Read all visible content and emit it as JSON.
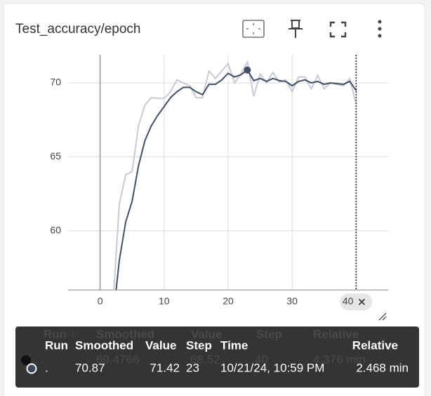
{
  "chart_data": {
    "type": "line",
    "title": "Test_accuracy/epoch",
    "x": [
      2,
      3,
      4,
      5,
      6,
      7,
      8,
      9,
      10,
      11,
      12,
      13,
      14,
      15,
      16,
      17,
      18,
      19,
      20,
      21,
      22,
      23,
      24,
      25,
      26,
      27,
      28,
      29,
      30,
      31,
      32,
      33,
      34,
      35,
      36,
      37,
      38,
      39,
      40
    ],
    "series": [
      {
        "color": "#c6cbd4",
        "values": [
          55.0,
          61.8,
          63.8,
          64.0,
          67.1,
          68.5,
          69.0,
          68.95,
          68.95,
          69.4,
          70.2,
          70.0,
          69.8,
          69.0,
          69.0,
          70.8,
          70.3,
          70.8,
          71.3,
          70.0,
          70.6,
          71.42,
          69.1,
          70.6,
          70.0,
          70.7,
          70.05,
          70.2,
          69.4,
          70.4,
          70.4,
          69.6,
          70.5,
          69.6,
          70.0,
          69.9,
          69.8,
          70.3,
          68.52
        ]
      },
      {
        "color": "#425066",
        "values": [
          54.0,
          58.0,
          60.6,
          62.0,
          64.4,
          66.1,
          67.1,
          67.8,
          68.4,
          69.0,
          69.4,
          69.7,
          69.7,
          69.4,
          69.2,
          69.9,
          69.9,
          70.2,
          70.65,
          70.4,
          70.55,
          70.87,
          70.15,
          70.3,
          70.1,
          70.3,
          70.15,
          70.1,
          69.8,
          70.1,
          70.2,
          70.0,
          70.1,
          69.9,
          70.0,
          69.95,
          69.9,
          70.1,
          69.4766
        ]
      }
    ],
    "xlim": [
      -5,
      45
    ],
    "xticks": [
      0,
      10,
      20,
      30,
      40
    ],
    "ylim": [
      56,
      71.9
    ],
    "yticks": [
      60,
      65,
      70
    ],
    "grid": true,
    "hover": {
      "x": 40
    }
  },
  "tooltip": {
    "columns": [
      "Run",
      "Smoothed",
      "Value",
      "Step",
      "Time",
      "Relative"
    ],
    "row": [
      ".",
      70.87,
      71.42,
      23,
      "10/21/24, 10:59 PM",
      "2.468 min"
    ]
  },
  "ghost_tooltip": {
    "columns": [
      "Run ↑",
      "Smoothed",
      "Value",
      "Step",
      "Relative"
    ],
    "row": [
      ".",
      69.4766,
      68.52,
      40,
      "4.376 min"
    ]
  }
}
